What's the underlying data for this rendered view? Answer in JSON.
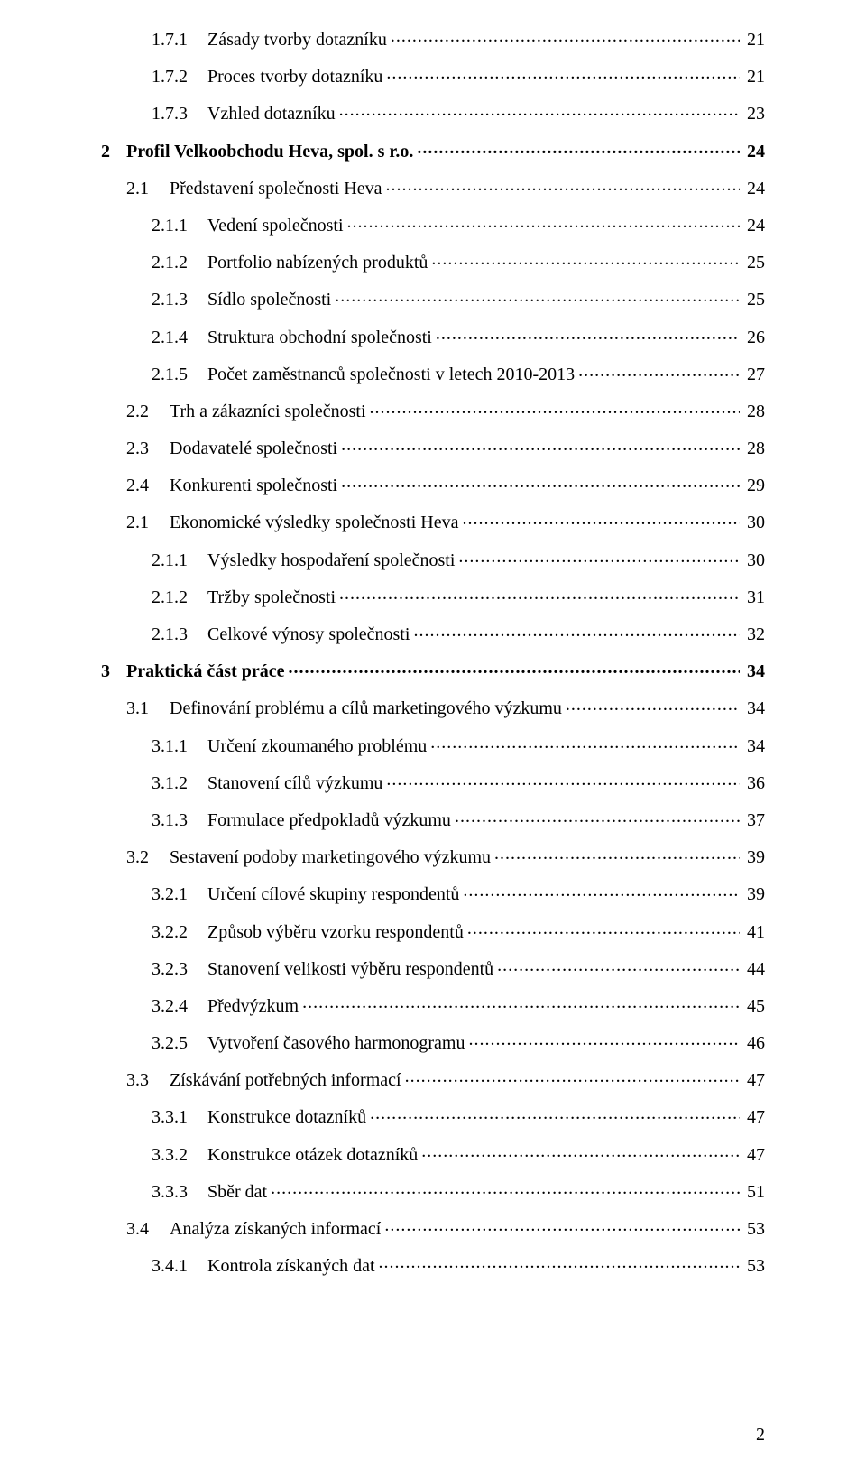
{
  "page_number": "2",
  "toc": [
    {
      "level": 3,
      "num": "1.7.1",
      "title": "Zásady tvorby dotazníku",
      "page": "21"
    },
    {
      "level": 3,
      "num": "1.7.2",
      "title": "Proces tvorby dotazníku",
      "page": "21"
    },
    {
      "level": 3,
      "num": "1.7.3",
      "title": "Vzhled dotazníku",
      "page": "23"
    },
    {
      "level": 1,
      "num": "2",
      "title": "Profil Velkoobchodu Heva, spol. s r.o.",
      "page": "24"
    },
    {
      "level": 2,
      "num": "2.1",
      "title": "Představení společnosti Heva",
      "page": "24"
    },
    {
      "level": 3,
      "num": "2.1.1",
      "title": "Vedení společnosti",
      "page": "24"
    },
    {
      "level": 3,
      "num": "2.1.2",
      "title": "Portfolio nabízených produktů",
      "page": "25"
    },
    {
      "level": 3,
      "num": "2.1.3",
      "title": "Sídlo společnosti",
      "page": "25"
    },
    {
      "level": 3,
      "num": "2.1.4",
      "title": "Struktura obchodní společnosti",
      "page": "26"
    },
    {
      "level": 3,
      "num": "2.1.5",
      "title": "Počet zaměstnanců společnosti v letech 2010-2013",
      "page": "27"
    },
    {
      "level": 2,
      "num": "2.2",
      "title": "Trh a zákazníci společnosti",
      "page": "28"
    },
    {
      "level": 2,
      "num": "2.3",
      "title": "Dodavatelé společnosti",
      "page": "28"
    },
    {
      "level": 2,
      "num": "2.4",
      "title": "Konkurenti společnosti",
      "page": "29"
    },
    {
      "level": 2,
      "num": "2.1",
      "title": "Ekonomické výsledky společnosti Heva",
      "page": "30"
    },
    {
      "level": 3,
      "num": "2.1.1",
      "title": "Výsledky hospodaření společnosti",
      "page": "30"
    },
    {
      "level": 3,
      "num": "2.1.2",
      "title": "Tržby společnosti",
      "page": "31"
    },
    {
      "level": 3,
      "num": "2.1.3",
      "title": "Celkové výnosy společnosti",
      "page": "32"
    },
    {
      "level": 1,
      "num": "3",
      "title": "Praktická část práce",
      "page": "34"
    },
    {
      "level": 2,
      "num": "3.1",
      "title": "Definování problému a cílů marketingového výzkumu",
      "page": "34"
    },
    {
      "level": 3,
      "num": "3.1.1",
      "title": "Určení zkoumaného problému",
      "page": "34"
    },
    {
      "level": 3,
      "num": "3.1.2",
      "title": "Stanovení cílů výzkumu",
      "page": "36"
    },
    {
      "level": 3,
      "num": "3.1.3",
      "title": "Formulace předpokladů výzkumu",
      "page": "37"
    },
    {
      "level": 2,
      "num": "3.2",
      "title": "Sestavení podoby marketingového výzkumu",
      "page": "39"
    },
    {
      "level": 3,
      "num": "3.2.1",
      "title": "Určení cílové skupiny respondentů",
      "page": "39"
    },
    {
      "level": 3,
      "num": "3.2.2",
      "title": "Způsob výběru vzorku respondentů",
      "page": "41"
    },
    {
      "level": 3,
      "num": "3.2.3",
      "title": "Stanovení velikosti výběru respondentů",
      "page": "44"
    },
    {
      "level": 3,
      "num": "3.2.4",
      "title": "Předvýzkum",
      "page": "45"
    },
    {
      "level": 3,
      "num": "3.2.5",
      "title": "Vytvoření časového harmonogramu",
      "page": "46"
    },
    {
      "level": 2,
      "num": "3.3",
      "title": "Získávání potřebných informací",
      "page": "47"
    },
    {
      "level": 3,
      "num": "3.3.1",
      "title": "Konstrukce dotazníků",
      "page": "47"
    },
    {
      "level": 3,
      "num": "3.3.2",
      "title": "Konstrukce otázek dotazníků",
      "page": "47"
    },
    {
      "level": 3,
      "num": "3.3.3",
      "title": "Sběr dat",
      "page": "51"
    },
    {
      "level": 2,
      "num": "3.4",
      "title": "Analýza získaných informací",
      "page": "53"
    },
    {
      "level": 3,
      "num": "3.4.1",
      "title": "Kontrola získaných dat",
      "page": "53"
    }
  ]
}
